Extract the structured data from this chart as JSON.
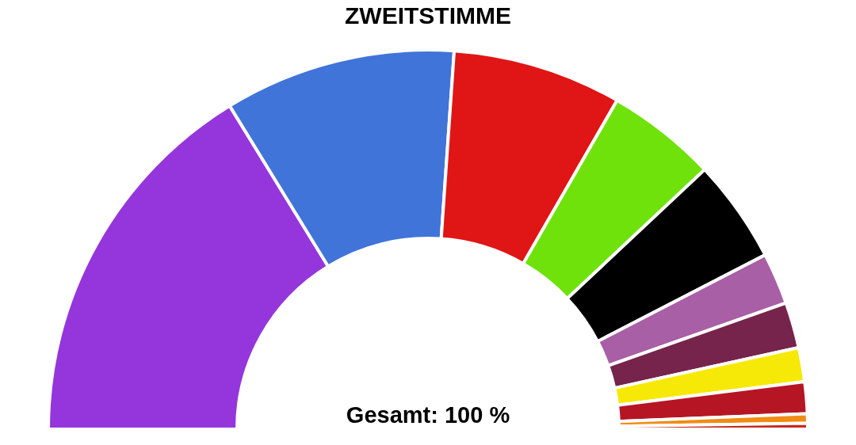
{
  "chart_data": {
    "type": "donut",
    "title": "ZWEITSTIMME",
    "annotations": [
      "Gesamt: 100 %"
    ],
    "categories": [
      null,
      null,
      null,
      null,
      null,
      null,
      null,
      null,
      null,
      null,
      null
    ],
    "values": [
      32.5,
      19.7,
      14.4,
      9.4,
      8.8,
      4.4,
      3.9,
      2.9,
      2.7,
      0.8,
      0.5
    ],
    "colors": [
      "#9436db",
      "#4074d9",
      "#e01515",
      "#6ee20a",
      "#000000",
      "#a85fa5",
      "#76244c",
      "#f7e907",
      "#b61524",
      "#f08c14",
      "#c8281e"
    ]
  }
}
